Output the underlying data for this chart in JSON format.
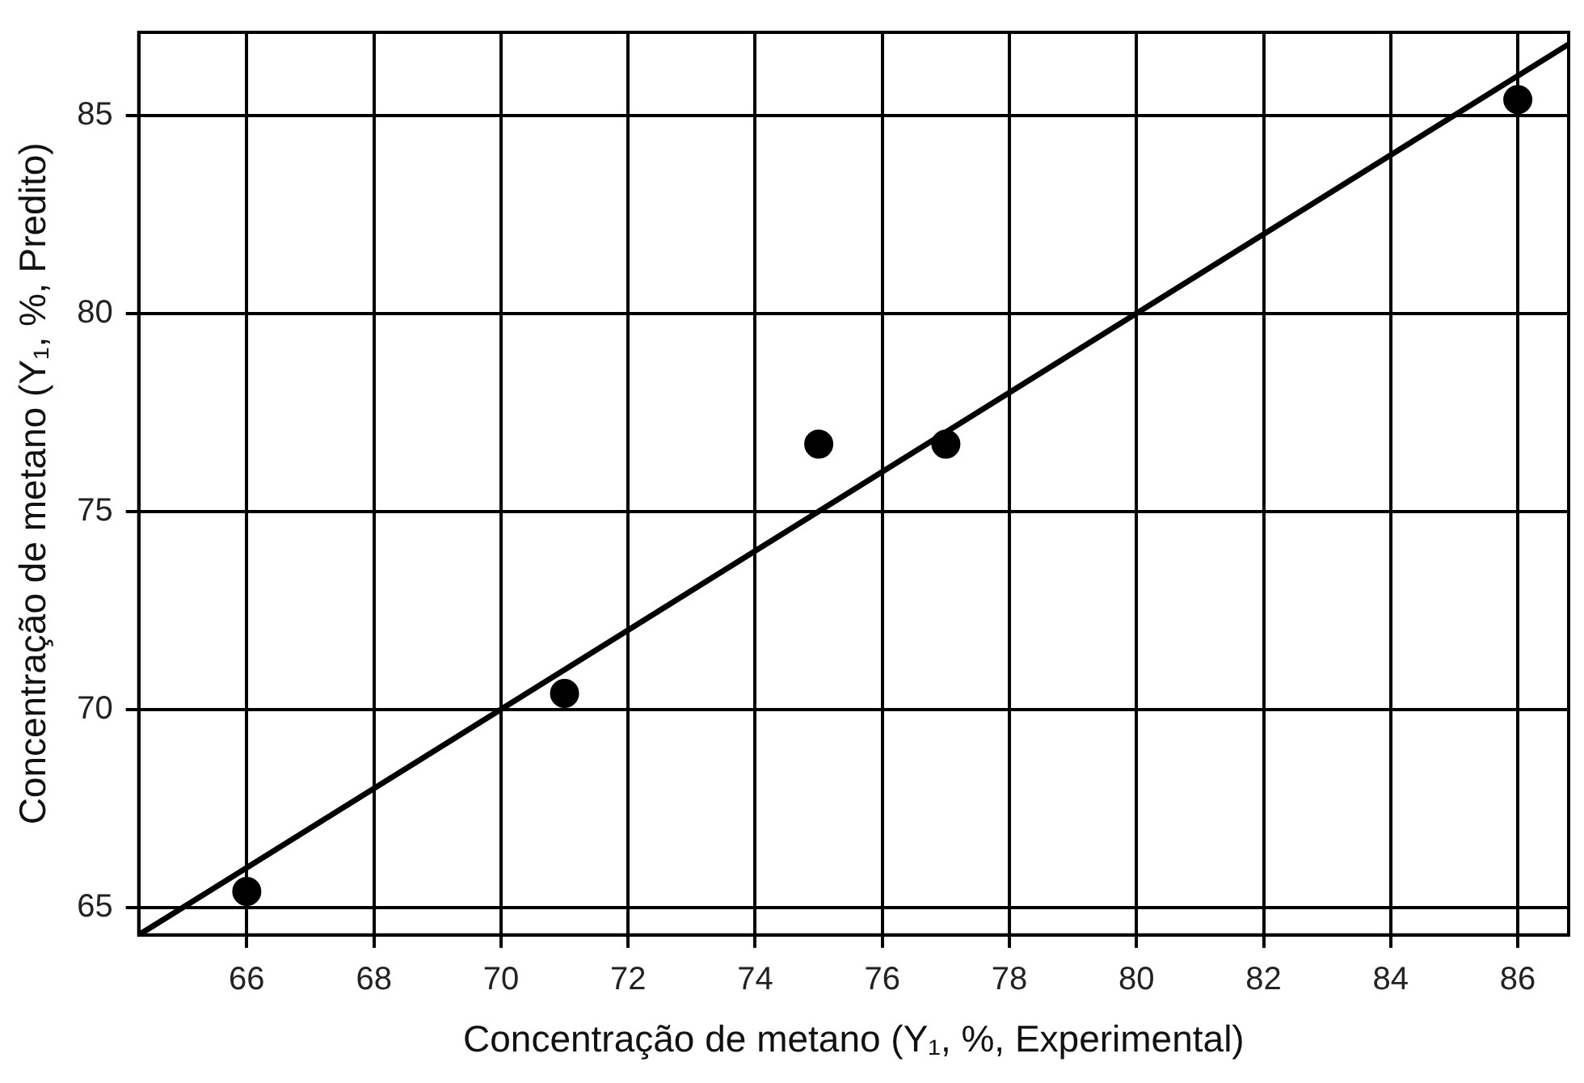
{
  "chart_data": {
    "type": "scatter",
    "xlabel": "Concentração de metano (Y₁, %, Experimental)",
    "ylabel": "Concentração de metano (Y₁, %, Predito)",
    "xlim": [
      64.3,
      86.8
    ],
    "ylim": [
      64.3,
      87.1
    ],
    "xticks": [
      66,
      68,
      70,
      72,
      74,
      76,
      78,
      80,
      82,
      84,
      86
    ],
    "yticks": [
      65,
      70,
      75,
      80,
      85
    ],
    "grid": true,
    "marker": "circle",
    "series": [
      {
        "color": "#000000",
        "x": [
          66,
          71,
          75,
          77,
          86
        ],
        "values": [
          65.4,
          70.4,
          76.7,
          76.7,
          85.4
        ]
      },
      {
        "type": "line",
        "color": "#000000",
        "marker": "none",
        "x": [
          64.3,
          86.8
        ],
        "values": [
          64.3,
          86.8
        ]
      }
    ]
  }
}
